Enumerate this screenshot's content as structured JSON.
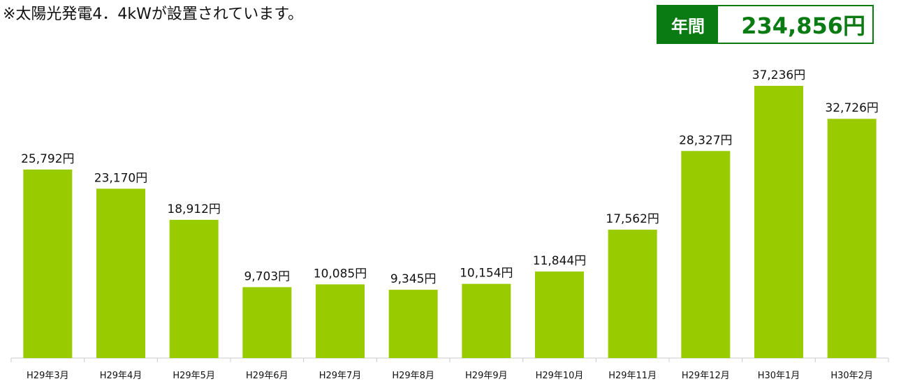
{
  "header": {
    "note": "※太陽光発電4．4kWが設置されています。"
  },
  "total": {
    "label": "年間",
    "value": "234,856円"
  },
  "colors": {
    "bar": "#99cc00",
    "accent": "#0a7a12"
  },
  "chart_data": {
    "type": "bar",
    "title": "",
    "xlabel": "",
    "ylabel": "",
    "categories": [
      "H29年3月",
      "H29年4月",
      "H29年5月",
      "H29年6月",
      "H29年7月",
      "H29年8月",
      "H29年9月",
      "H29年10月",
      "H29年11月",
      "H29年12月",
      "H30年1月",
      "H30年2月"
    ],
    "values": [
      25792,
      23170,
      18912,
      9703,
      10085,
      9345,
      10154,
      11844,
      17562,
      28327,
      37236,
      32726
    ],
    "data_labels": [
      "25,792円",
      "23,170円",
      "18,912円",
      "9,703円",
      "10,085円",
      "9,345円",
      "10,154円",
      "11,844円",
      "17,562円",
      "28,327円",
      "37,236円",
      "32,726円"
    ],
    "ylim": [
      0,
      40000
    ],
    "grid": false,
    "legend": "none"
  }
}
